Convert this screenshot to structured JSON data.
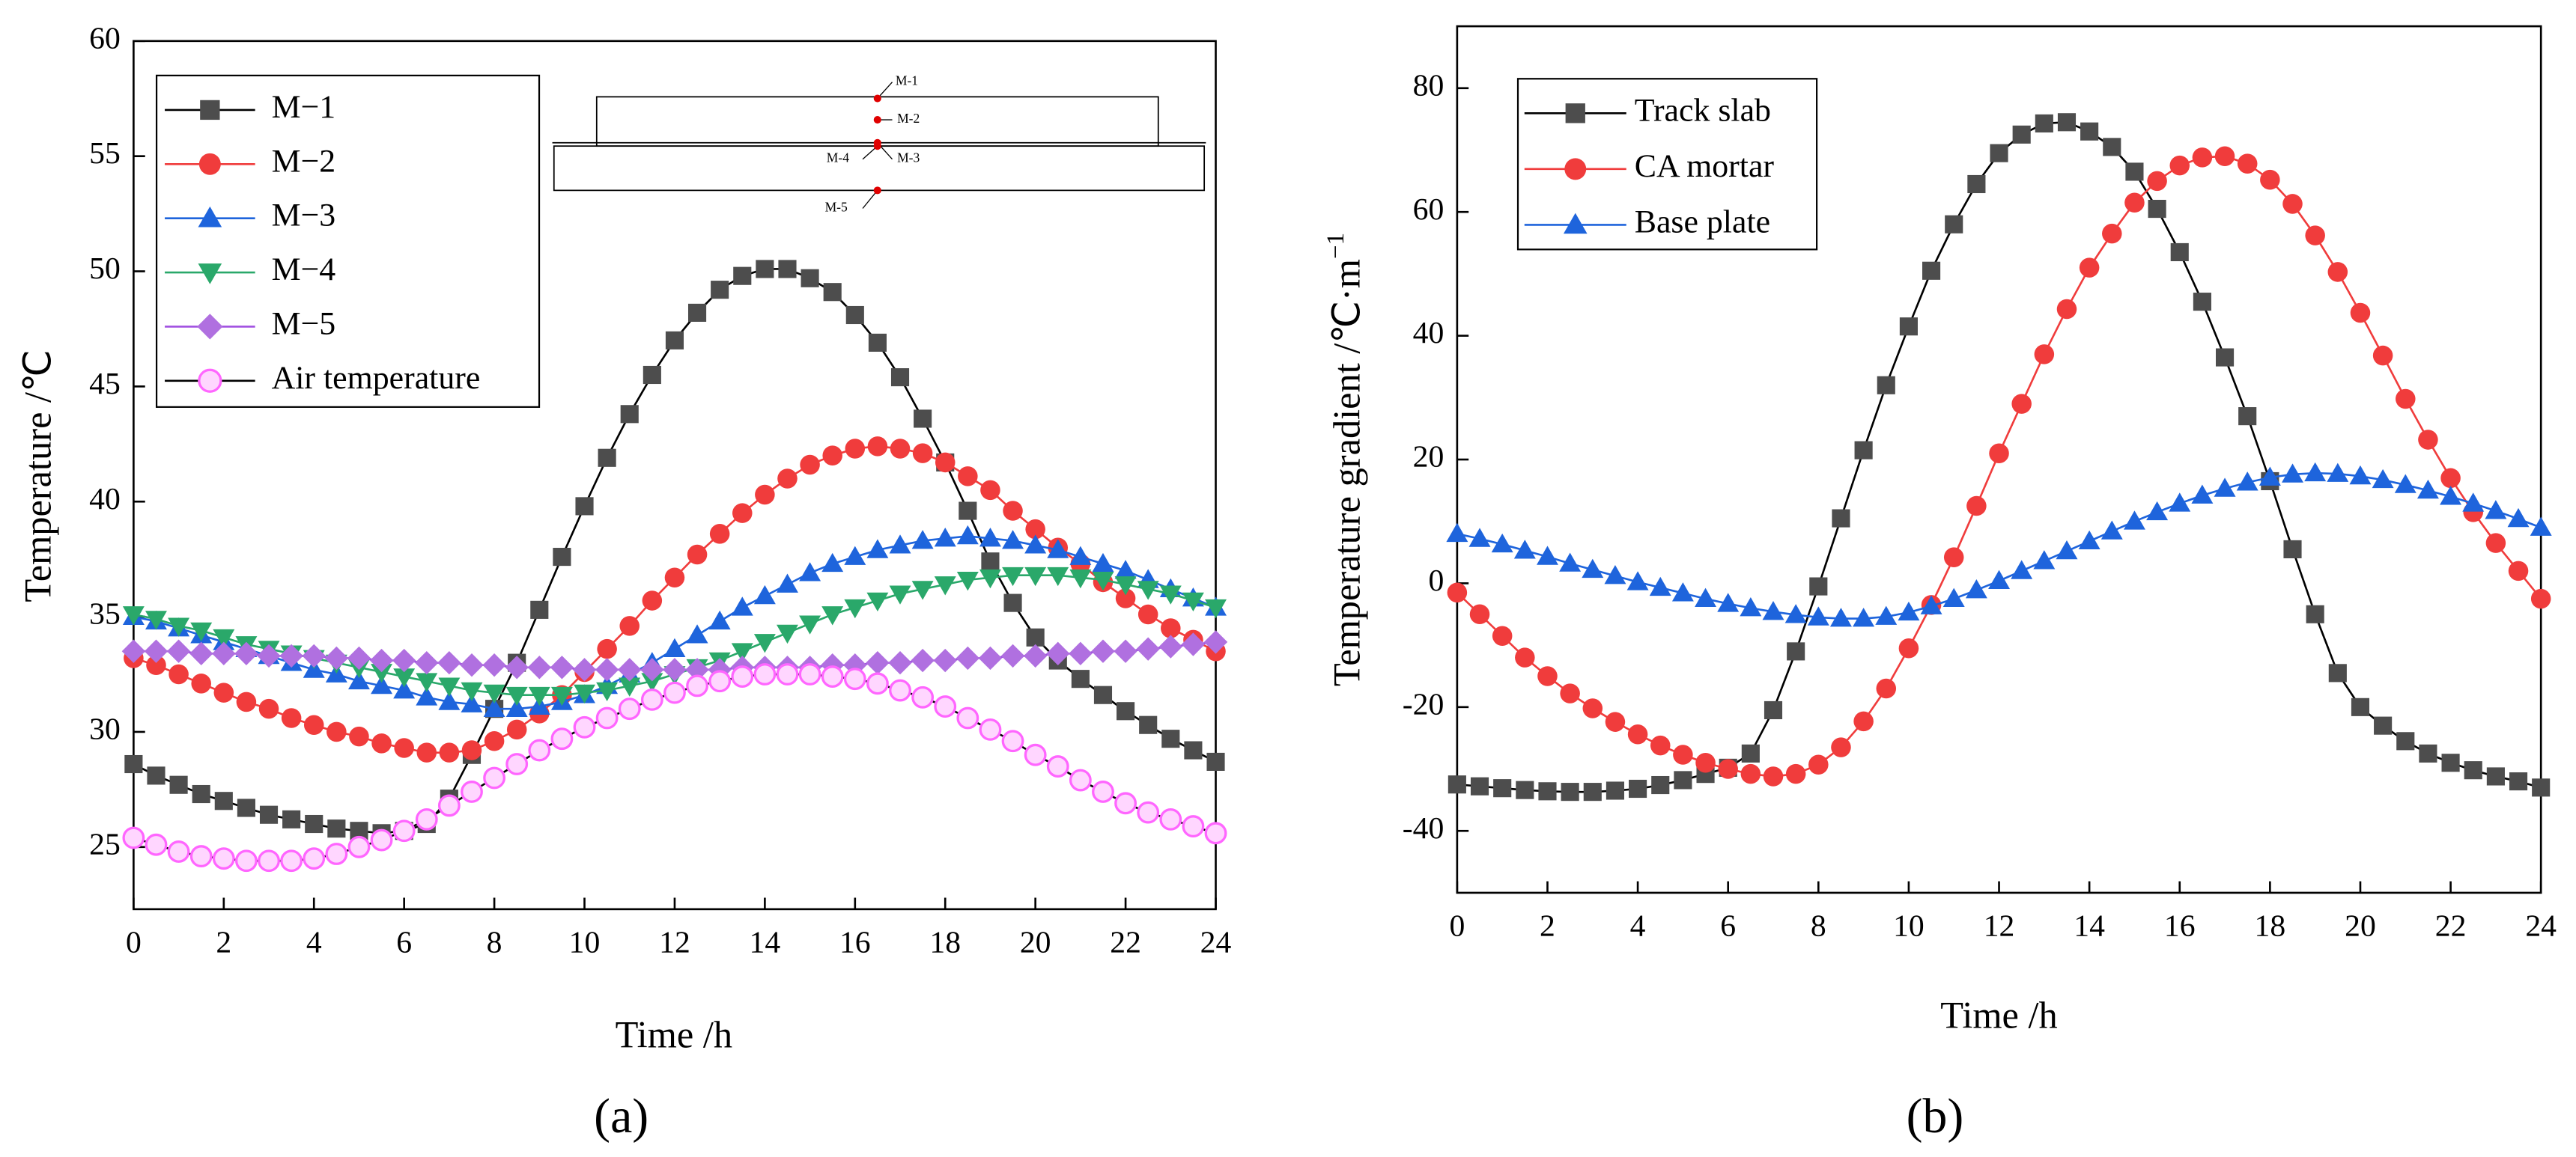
{
  "chart_data": [
    {
      "type": "line",
      "panel_label": "(a)",
      "x_label": "Time /h",
      "y_label": "Temperature /℃",
      "xlim": [
        0,
        24
      ],
      "xticks": [
        0,
        2,
        4,
        6,
        8,
        10,
        12,
        14,
        16,
        18,
        20,
        22,
        24
      ],
      "ylim": [
        22.3,
        60
      ],
      "yticks": [
        25,
        30,
        35,
        40,
        45,
        50,
        55,
        60
      ],
      "legend": "upper left",
      "inset_labels": [
        "M-1",
        "M-2",
        "M-3",
        "M-4",
        "M-5"
      ],
      "x": [
        0,
        0.5,
        1,
        1.5,
        2,
        2.5,
        3,
        3.5,
        4,
        4.5,
        5,
        5.5,
        6,
        6.5,
        7,
        7.5,
        8,
        8.5,
        9,
        9.5,
        10,
        10.5,
        11,
        11.5,
        12,
        12.5,
        13,
        13.5,
        14,
        14.5,
        15,
        15.5,
        16,
        16.5,
        17,
        17.5,
        18,
        18.5,
        19,
        19.5,
        20,
        20.5,
        21,
        21.5,
        22,
        22.5,
        23,
        23.5,
        24
      ],
      "series": [
        {
          "name": "M−1",
          "color": "#4d4d4d",
          "line_color": "#000000",
          "marker": "square",
          "values": [
            28.6,
            28.1,
            27.7,
            27.3,
            27.0,
            26.7,
            26.4,
            26.2,
            26.0,
            25.8,
            25.7,
            25.6,
            25.7,
            26.0,
            27.1,
            29.0,
            31.0,
            33.0,
            35.3,
            37.6,
            39.8,
            41.9,
            43.8,
            45.5,
            47.0,
            48.2,
            49.2,
            49.8,
            50.1,
            50.1,
            49.7,
            49.1,
            48.1,
            46.9,
            45.4,
            43.6,
            41.7,
            39.6,
            37.4,
            35.6,
            34.1,
            33.1,
            32.3,
            31.6,
            30.9,
            30.3,
            29.7,
            29.2,
            28.7
          ]
        },
        {
          "name": "M−2",
          "color": "#f03c3c",
          "line_color": "#f03c3c",
          "marker": "circle",
          "values": [
            33.2,
            32.9,
            32.5,
            32.1,
            31.7,
            31.3,
            31.0,
            30.6,
            30.3,
            30.0,
            29.8,
            29.5,
            29.3,
            29.1,
            29.1,
            29.2,
            29.6,
            30.1,
            30.8,
            31.6,
            32.6,
            33.6,
            34.6,
            35.7,
            36.7,
            37.7,
            38.6,
            39.5,
            40.3,
            41.0,
            41.6,
            42.0,
            42.3,
            42.4,
            42.3,
            42.1,
            41.7,
            41.1,
            40.5,
            39.6,
            38.8,
            38.0,
            37.3,
            36.5,
            35.8,
            35.1,
            34.5,
            34.0,
            33.5
          ]
        },
        {
          "name": "M−3",
          "color": "#1e64dc",
          "line_color": "#1e64dc",
          "marker": "triangle-up",
          "values": [
            35.0,
            34.8,
            34.5,
            34.2,
            33.9,
            33.6,
            33.3,
            33.0,
            32.7,
            32.5,
            32.2,
            32.0,
            31.8,
            31.5,
            31.3,
            31.2,
            31.0,
            31.0,
            31.1,
            31.3,
            31.6,
            32.0,
            32.5,
            33.0,
            33.6,
            34.2,
            34.8,
            35.4,
            35.9,
            36.4,
            36.9,
            37.3,
            37.6,
            37.9,
            38.1,
            38.3,
            38.4,
            38.5,
            38.4,
            38.3,
            38.1,
            37.9,
            37.6,
            37.3,
            37.0,
            36.6,
            36.2,
            35.8,
            35.4
          ]
        },
        {
          "name": "M−4",
          "color": "#2aa86a",
          "line_color": "#2aa86a",
          "marker": "triangle-down",
          "values": [
            35.1,
            34.9,
            34.6,
            34.4,
            34.1,
            33.8,
            33.6,
            33.4,
            33.2,
            33.0,
            32.8,
            32.6,
            32.4,
            32.2,
            32.0,
            31.8,
            31.7,
            31.6,
            31.6,
            31.6,
            31.7,
            31.8,
            32.0,
            32.2,
            32.5,
            32.8,
            33.1,
            33.5,
            33.9,
            34.3,
            34.7,
            35.1,
            35.4,
            35.7,
            36.0,
            36.2,
            36.4,
            36.6,
            36.7,
            36.8,
            36.8,
            36.8,
            36.7,
            36.6,
            36.4,
            36.2,
            36.0,
            35.7,
            35.4
          ]
        },
        {
          "name": "M−5",
          "color": "#b070e0",
          "line_color": "#a050e0",
          "marker": "diamond",
          "values": [
            33.5,
            33.5,
            33.5,
            33.4,
            33.4,
            33.4,
            33.3,
            33.3,
            33.3,
            33.2,
            33.2,
            33.1,
            33.1,
            33.0,
            33.0,
            32.9,
            32.9,
            32.8,
            32.8,
            32.8,
            32.7,
            32.7,
            32.7,
            32.7,
            32.7,
            32.7,
            32.7,
            32.8,
            32.8,
            32.8,
            32.8,
            32.9,
            32.9,
            33.0,
            33.0,
            33.1,
            33.1,
            33.2,
            33.2,
            33.3,
            33.3,
            33.4,
            33.4,
            33.5,
            33.5,
            33.6,
            33.7,
            33.8,
            33.9
          ]
        },
        {
          "name": "Air temperature",
          "color": "#ff66ff",
          "line_color": "#000000",
          "marker": "open-circle",
          "values": [
            25.4,
            25.1,
            24.8,
            24.6,
            24.5,
            24.4,
            24.4,
            24.4,
            24.5,
            24.7,
            25.0,
            25.3,
            25.7,
            26.2,
            26.8,
            27.4,
            28.0,
            28.6,
            29.2,
            29.7,
            30.2,
            30.6,
            31.0,
            31.4,
            31.7,
            32.0,
            32.2,
            32.4,
            32.5,
            32.5,
            32.5,
            32.4,
            32.3,
            32.1,
            31.8,
            31.5,
            31.1,
            30.6,
            30.1,
            29.6,
            29.0,
            28.5,
            27.9,
            27.4,
            26.9,
            26.5,
            26.2,
            25.9,
            25.6
          ]
        }
      ]
    },
    {
      "type": "line",
      "panel_label": "(b)",
      "x_label": "Time /h",
      "y_label": "Temperature gradient /℃·m",
      "y_label_sup": "−1",
      "xlim": [
        0,
        24
      ],
      "xticks": [
        0,
        2,
        4,
        6,
        8,
        10,
        12,
        14,
        16,
        18,
        20,
        22,
        24
      ],
      "ylim": [
        -50,
        90
      ],
      "yticks": [
        -40,
        -20,
        0,
        20,
        40,
        60,
        80
      ],
      "legend": "upper left",
      "x": [
        0,
        0.5,
        1,
        1.5,
        2,
        2.5,
        3,
        3.5,
        4,
        4.5,
        5,
        5.5,
        6,
        6.5,
        7,
        7.5,
        8,
        8.5,
        9,
        9.5,
        10,
        10.5,
        11,
        11.5,
        12,
        12.5,
        13,
        13.5,
        14,
        14.5,
        15,
        15.5,
        16,
        16.5,
        17,
        17.5,
        18,
        18.5,
        19,
        19.5,
        20,
        20.5,
        21,
        21.5,
        22,
        22.5,
        23,
        23.5,
        24
      ],
      "series": [
        {
          "name": "Track slab",
          "color": "#4d4d4d",
          "line_color": "#000000",
          "marker": "square",
          "values": [
            -32.5,
            -32.8,
            -33.1,
            -33.4,
            -33.6,
            -33.7,
            -33.7,
            -33.5,
            -33.2,
            -32.6,
            -31.8,
            -30.8,
            -29.8,
            -27.5,
            -20.5,
            -11,
            -0.5,
            10.5,
            21.5,
            32,
            41.5,
            50.5,
            58,
            64.5,
            69.5,
            72.5,
            74.3,
            74.5,
            73,
            70.5,
            66.5,
            60.5,
            53.5,
            45.5,
            36.5,
            27,
            16.5,
            5.5,
            -5,
            -14.5,
            -20,
            -23,
            -25.5,
            -27.5,
            -29,
            -30.2,
            -31.2,
            -32,
            -33
          ]
        },
        {
          "name": "CA mortar",
          "color": "#f03c3c",
          "line_color": "#f03c3c",
          "marker": "circle",
          "values": [
            -1.5,
            -5,
            -8.5,
            -12,
            -15,
            -17.8,
            -20.2,
            -22.4,
            -24.4,
            -26.2,
            -27.7,
            -29,
            -30,
            -30.8,
            -31.2,
            -30.8,
            -29.3,
            -26.5,
            -22.3,
            -17,
            -10.5,
            -3.5,
            4.2,
            12.5,
            21,
            29,
            37,
            44.3,
            51,
            56.5,
            61.5,
            65,
            67.5,
            68.8,
            69,
            67.8,
            65.2,
            61.3,
            56.2,
            50.3,
            43.7,
            36.8,
            29.8,
            23.2,
            17,
            11.5,
            6.5,
            2,
            -2.5
          ]
        },
        {
          "name": "Base plate",
          "color": "#1e64dc",
          "line_color": "#1e64dc",
          "marker": "triangle-up",
          "values": [
            8,
            7.2,
            6.3,
            5.3,
            4.3,
            3.2,
            2.2,
            1.2,
            0.2,
            -0.7,
            -1.6,
            -2.5,
            -3.3,
            -4,
            -4.6,
            -5.1,
            -5.5,
            -5.7,
            -5.7,
            -5.4,
            -4.7,
            -3.7,
            -2.5,
            -1.1,
            0.4,
            2,
            3.6,
            5.2,
            6.8,
            8.4,
            10,
            11.5,
            12.9,
            14.2,
            15.3,
            16.3,
            17.1,
            17.6,
            17.8,
            17.7,
            17.3,
            16.7,
            15.9,
            15,
            14,
            12.9,
            11.7,
            10.4,
            9
          ]
        }
      ]
    }
  ]
}
